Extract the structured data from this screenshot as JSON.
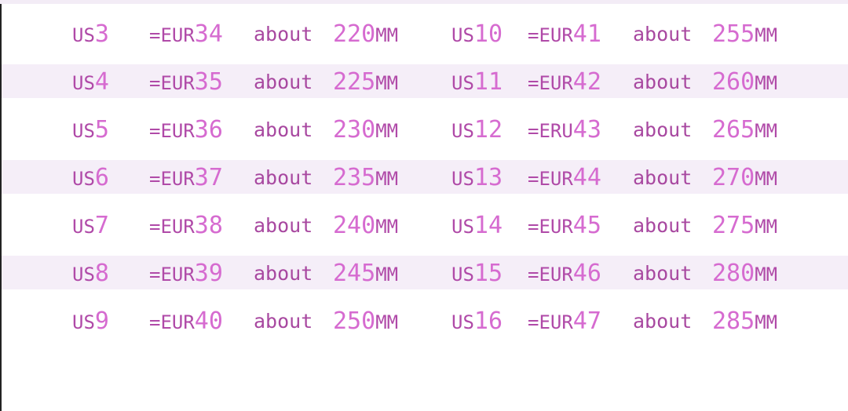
{
  "colors": {
    "label": "#b04aa8",
    "number": "#d66bd0",
    "stripe": "#f5eef8"
  },
  "left_column": [
    {
      "us": "3",
      "eu_prefix": "=EUR",
      "eu": "34",
      "about": "about",
      "mm": "220",
      "unit": "MM"
    },
    {
      "us": "4",
      "eu_prefix": "=EUR",
      "eu": "35",
      "about": "about",
      "mm": "225",
      "unit": "MM"
    },
    {
      "us": "5",
      "eu_prefix": "=EUR",
      "eu": "36",
      "about": "about",
      "mm": "230",
      "unit": "MM"
    },
    {
      "us": "6",
      "eu_prefix": "=EUR",
      "eu": "37",
      "about": "about",
      "mm": "235",
      "unit": "MM"
    },
    {
      "us": "7",
      "eu_prefix": "=EUR",
      "eu": "38",
      "about": "about",
      "mm": "240",
      "unit": "MM"
    },
    {
      "us": "8",
      "eu_prefix": "=EUR",
      "eu": "39",
      "about": "about",
      "mm": "245",
      "unit": "MM"
    },
    {
      "us": "9",
      "eu_prefix": "=EUR",
      "eu": "40",
      "about": "about",
      "mm": "250",
      "unit": "MM"
    }
  ],
  "right_column": [
    {
      "us": "10",
      "eu_prefix": "=EUR",
      "eu": "41",
      "about": "about",
      "mm": "255",
      "unit": "MM"
    },
    {
      "us": "11",
      "eu_prefix": "=EUR",
      "eu": "42",
      "about": "about",
      "mm": "260",
      "unit": "MM"
    },
    {
      "us": "12",
      "eu_prefix": "=ERU",
      "eu": "43",
      "about": "about",
      "mm": "265",
      "unit": "MM"
    },
    {
      "us": "13",
      "eu_prefix": "=EUR",
      "eu": "44",
      "about": "about",
      "mm": "270",
      "unit": "MM"
    },
    {
      "us": "14",
      "eu_prefix": "=EUR",
      "eu": "45",
      "about": "about",
      "mm": "275",
      "unit": "MM"
    },
    {
      "us": "15",
      "eu_prefix": "=EUR",
      "eu": "46",
      "about": "about",
      "mm": "280",
      "unit": "MM"
    },
    {
      "us": "16",
      "eu_prefix": "=EUR",
      "eu": "47",
      "about": "about",
      "mm": "285",
      "unit": "MM"
    }
  ],
  "us_prefix": "US"
}
